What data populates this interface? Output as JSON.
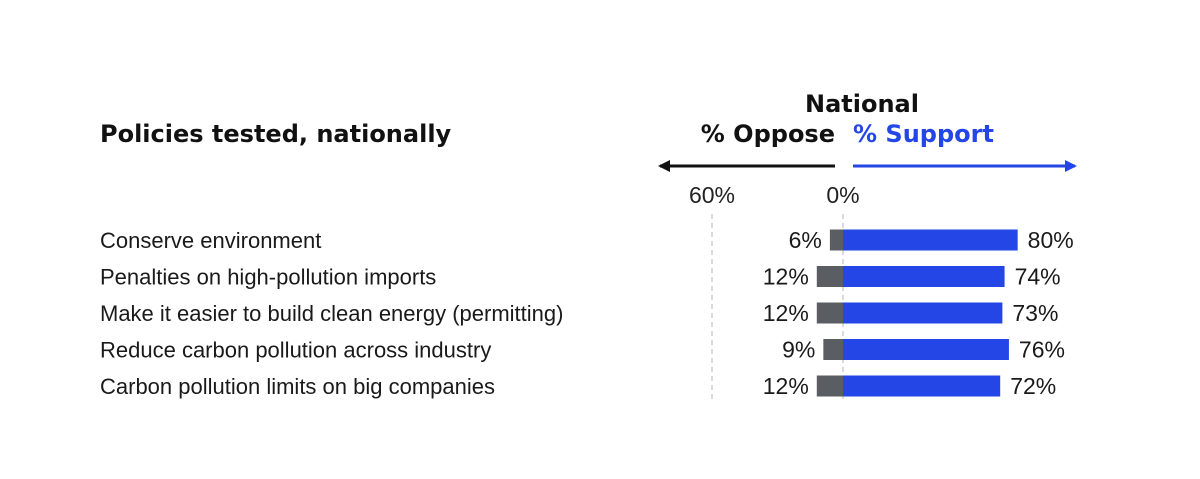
{
  "chart_data": {
    "type": "bar",
    "title": "Policies tested, nationally",
    "group_label": "National",
    "oppose_label": "% Oppose",
    "support_label": "% Support",
    "x_ticks": [
      "60%",
      "0%"
    ],
    "categories": [
      "Conserve environment",
      "Penalties on high-pollution imports",
      "Make it easier to build clean energy (permitting)",
      "Reduce carbon pollution across industry",
      "Carbon pollution limits on big companies"
    ],
    "series": [
      {
        "name": "% Oppose",
        "color": "#5a5d61",
        "values": [
          6,
          12,
          12,
          9,
          12
        ],
        "labels": [
          "6%",
          "12%",
          "12%",
          "9%",
          "12%"
        ]
      },
      {
        "name": "% Support",
        "color": "#2446e6",
        "values": [
          80,
          74,
          73,
          76,
          72
        ],
        "labels": [
          "80%",
          "74%",
          "73%",
          "76%",
          "72%"
        ]
      }
    ],
    "grid": true
  }
}
